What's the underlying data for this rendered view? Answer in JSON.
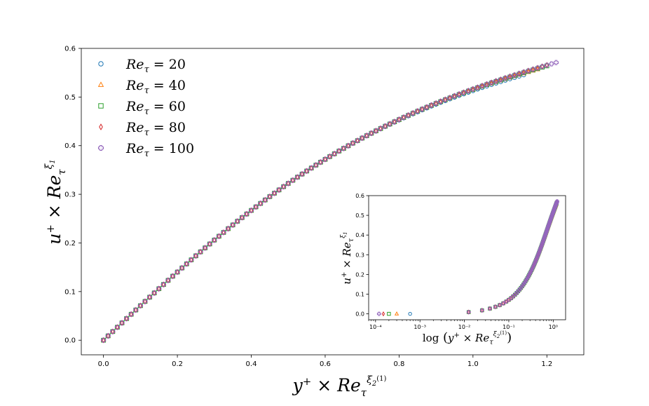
{
  "chart_data": [
    {
      "type": "scatter",
      "xlabel": "y⁺ × Reτ^ξ₂⁽¹⁾",
      "ylabel": "u⁺ × Reτ^ξ₁",
      "xlim": [
        -0.06,
        1.3
      ],
      "ylim": [
        -0.03,
        0.6
      ],
      "xticks": [
        "0.0",
        "0.2",
        "0.4",
        "0.6",
        "0.8",
        "1.0",
        "1.2"
      ],
      "yticks": [
        "0.0",
        "0.1",
        "0.2",
        "0.3",
        "0.4",
        "0.5",
        "0.6"
      ],
      "legend_position": "top-left",
      "grid": false,
      "series": [
        {
          "name": "Reτ = 20",
          "marker": "circle",
          "color": "#1f77b4",
          "xmax": 1.14,
          "ymax": 0.546
        },
        {
          "name": "Reτ = 40",
          "marker": "triangle",
          "color": "#ff7f0e",
          "xmax": 1.18,
          "ymax": 0.558
        },
        {
          "name": "Reτ = 60",
          "marker": "square",
          "color": "#2ca02c",
          "xmax": 1.2,
          "ymax": 0.564
        },
        {
          "name": "Reτ = 80",
          "marker": "diamond",
          "color": "#d62728",
          "xmax": 1.21,
          "ymax": 0.568
        },
        {
          "name": "Reτ = 100",
          "marker": "plus",
          "color": "#9467bd",
          "xmax": 1.23,
          "ymax": 0.572
        }
      ]
    },
    {
      "type": "scatter",
      "inset": true,
      "xscale": "log",
      "xlabel": "log(y⁺ × Reτ^ξ₂⁽¹⁾)",
      "ylabel": "u⁺ × Reτ^ξ₁",
      "xlim": [
        7e-05,
        1.9
      ],
      "ylim": [
        -0.03,
        0.6
      ],
      "xticks": [
        "10⁻⁴",
        "10⁻³",
        "10⁻²",
        "10⁻¹",
        "10⁰"
      ],
      "yticks": [
        "0.0",
        "0.1",
        "0.2",
        "0.3",
        "0.4",
        "0.5",
        "0.6"
      ],
      "zero_points": [
        {
          "series": "Reτ = 20",
          "x": 0.0006,
          "y": 0.0
        },
        {
          "series": "Reτ = 40",
          "x": 0.0003,
          "y": 0.0
        },
        {
          "series": "Reτ = 60",
          "x": 0.0002,
          "y": 0.0
        },
        {
          "series": "Reτ = 80",
          "x": 0.00015,
          "y": 0.0
        },
        {
          "series": "Reτ = 100",
          "x": 0.00012,
          "y": 0.0
        }
      ]
    }
  ],
  "legend": [
    {
      "prefix": "Re",
      "sub": "τ",
      "rest": " = 20",
      "marker": "circle",
      "color": "#1f77b4"
    },
    {
      "prefix": "Re",
      "sub": "τ",
      "rest": " = 40",
      "marker": "triangle",
      "color": "#ff7f0e"
    },
    {
      "prefix": "Re",
      "sub": "τ",
      "rest": " = 60",
      "marker": "square",
      "color": "#2ca02c"
    },
    {
      "prefix": "Re",
      "sub": "τ",
      "rest": " = 80",
      "marker": "diamond",
      "color": "#d62728"
    },
    {
      "prefix": "Re",
      "sub": "τ",
      "rest": " = 100",
      "marker": "plus",
      "color": "#9467bd"
    }
  ]
}
